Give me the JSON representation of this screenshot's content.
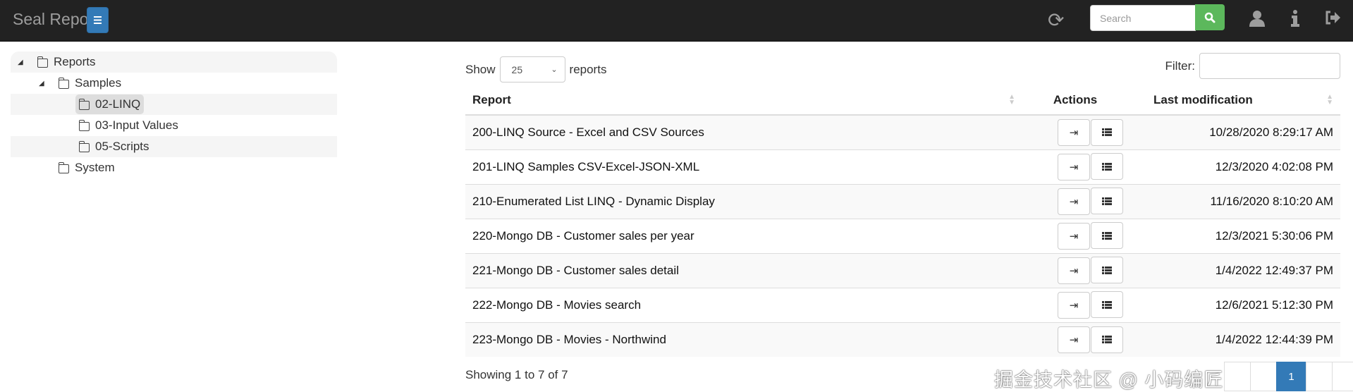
{
  "navbar": {
    "title": "Seal Report",
    "search_placeholder": "Search",
    "icons": [
      "menu-icon",
      "refresh-icon",
      "search-icon",
      "user-icon",
      "info-icon",
      "logout-icon"
    ]
  },
  "tree": {
    "items": [
      {
        "label": "Reports",
        "level": 0,
        "expanded": true
      },
      {
        "label": "Samples",
        "level": 1,
        "expanded": true
      },
      {
        "label": "02-LINQ",
        "level": 2,
        "selected": true
      },
      {
        "label": "03-Input Values",
        "level": 2
      },
      {
        "label": "05-Scripts",
        "level": 2
      },
      {
        "label": "System",
        "level": 1
      }
    ]
  },
  "table": {
    "show_label": "Show",
    "page_size": "25",
    "reports_label": "reports",
    "filter_label": "Filter:",
    "filter_value": "",
    "headers": {
      "report": "Report",
      "actions": "Actions",
      "last_mod": "Last modification"
    },
    "rows": [
      {
        "report": "200-LINQ Source - Excel and CSV Sources",
        "last_mod": "10/28/2020 8:29:17 AM"
      },
      {
        "report": "201-LINQ Samples CSV-Excel-JSON-XML",
        "last_mod": "12/3/2020 4:02:08 PM"
      },
      {
        "report": "210-Enumerated List LINQ - Dynamic Display",
        "last_mod": "11/16/2020 8:10:20 AM"
      },
      {
        "report": "220-Mongo DB - Customer sales per year",
        "last_mod": "12/3/2021 5:30:06 PM"
      },
      {
        "report": "221-Mongo DB - Customer sales detail",
        "last_mod": "1/4/2022 12:49:37 PM"
      },
      {
        "report": "222-Mongo DB - Movies search",
        "last_mod": "12/6/2021 5:12:30 PM"
      },
      {
        "report": "223-Mongo DB - Movies - Northwind",
        "last_mod": "1/4/2022 12:44:39 PM"
      }
    ],
    "info": "Showing 1 to 7 of 7",
    "pagination": {
      "current": "1"
    }
  },
  "watermark": "掘金技术社区 @ 小码编匠"
}
